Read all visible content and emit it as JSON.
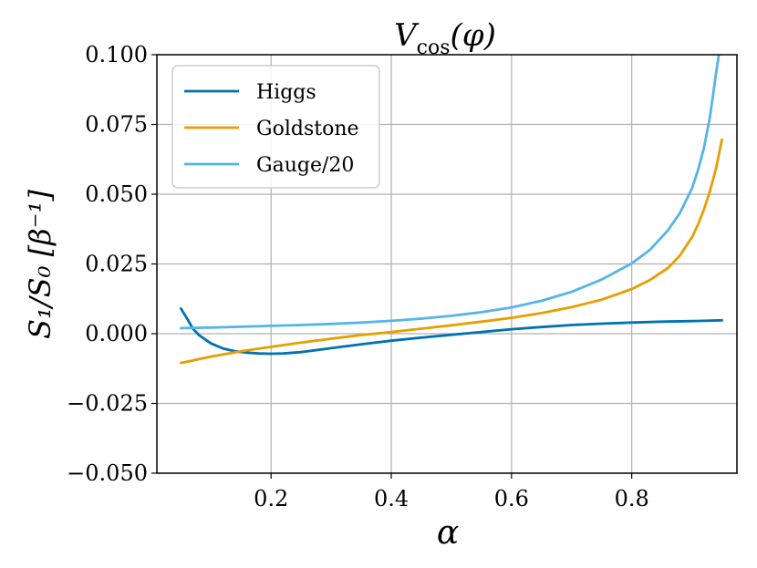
{
  "chart_data": {
    "type": "line",
    "title": "V_cos(φ)",
    "title_parts": {
      "base": "V",
      "sub": "cos",
      "arg": "(φ)"
    },
    "xlabel": "α",
    "ylabel": "S₁/S₀ [β⁻¹]",
    "xlim": [
      0.01,
      0.975
    ],
    "ylim": [
      -0.05,
      0.1
    ],
    "grid": true,
    "legend_position": "top-left",
    "x_ticks": [
      {
        "value": 0.2,
        "label": "0.2"
      },
      {
        "value": 0.4,
        "label": "0.4"
      },
      {
        "value": 0.6,
        "label": "0.6"
      },
      {
        "value": 0.8,
        "label": "0.8"
      }
    ],
    "y_ticks": [
      {
        "value": 0.1,
        "label": "0.100"
      },
      {
        "value": 0.075,
        "label": "0.075"
      },
      {
        "value": 0.05,
        "label": "0.050"
      },
      {
        "value": 0.025,
        "label": "0.025"
      },
      {
        "value": 0.0,
        "label": "0.000"
      },
      {
        "value": -0.025,
        "label": "−0.025"
      },
      {
        "value": -0.05,
        "label": "−0.050"
      }
    ],
    "series": [
      {
        "name": "Higgs",
        "color": "#0072b2",
        "x": [
          0.05,
          0.06,
          0.07,
          0.08,
          0.1,
          0.12,
          0.14,
          0.16,
          0.18,
          0.2,
          0.22,
          0.25,
          0.3,
          0.35,
          0.4,
          0.45,
          0.5,
          0.55,
          0.6,
          0.65,
          0.7,
          0.75,
          0.8,
          0.85,
          0.9,
          0.95
        ],
        "values": [
          0.009,
          0.0055,
          0.0018,
          -0.0005,
          -0.0035,
          -0.0053,
          -0.0063,
          -0.0068,
          -0.0071,
          -0.0072,
          -0.0071,
          -0.0066,
          -0.0052,
          -0.0038,
          -0.0025,
          -0.0014,
          -0.0004,
          0.0006,
          0.0016,
          0.0024,
          0.0031,
          0.0036,
          0.004,
          0.0043,
          0.0045,
          0.0048
        ]
      },
      {
        "name": "Goldstone",
        "color": "#e69f00",
        "x": [
          0.05,
          0.1,
          0.15,
          0.2,
          0.25,
          0.3,
          0.35,
          0.4,
          0.45,
          0.5,
          0.55,
          0.6,
          0.65,
          0.7,
          0.75,
          0.8,
          0.83,
          0.86,
          0.88,
          0.9,
          0.91,
          0.92,
          0.93,
          0.94,
          0.95
        ],
        "values": [
          -0.0105,
          -0.0082,
          -0.0063,
          -0.0047,
          -0.0032,
          -0.0018,
          -0.0005,
          0.0006,
          0.0018,
          0.003,
          0.0043,
          0.0057,
          0.0074,
          0.0095,
          0.0122,
          0.016,
          0.0192,
          0.0235,
          0.028,
          0.0345,
          0.039,
          0.0445,
          0.051,
          0.059,
          0.0695
        ]
      },
      {
        "name": "Gauge/20",
        "color": "#56b4e9",
        "x": [
          0.05,
          0.1,
          0.15,
          0.2,
          0.25,
          0.3,
          0.35,
          0.4,
          0.45,
          0.5,
          0.55,
          0.6,
          0.65,
          0.7,
          0.75,
          0.8,
          0.83,
          0.86,
          0.88,
          0.9,
          0.91,
          0.92,
          0.93,
          0.935,
          0.94,
          0.945
        ],
        "values": [
          0.002,
          0.0022,
          0.0025,
          0.0028,
          0.0031,
          0.0035,
          0.004,
          0.0046,
          0.0054,
          0.0064,
          0.0077,
          0.0094,
          0.0118,
          0.015,
          0.0194,
          0.0252,
          0.03,
          0.037,
          0.0432,
          0.052,
          0.0585,
          0.0665,
          0.0775,
          0.085,
          0.093,
          0.1
        ]
      }
    ]
  }
}
